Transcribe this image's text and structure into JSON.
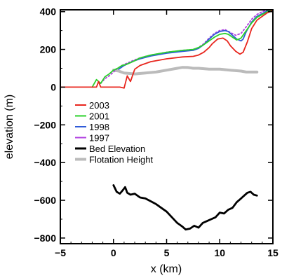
{
  "chart_data": {
    "type": "line",
    "title": "",
    "xlabel": "x (km)",
    "ylabel": "elevation (m)",
    "xlim": [
      -5,
      15
    ],
    "ylim": [
      -830,
      410
    ],
    "xticks": [
      -5,
      0,
      5,
      10,
      15
    ],
    "yticks": [
      -800,
      -600,
      -400,
      -200,
      0,
      200,
      400
    ],
    "grid": false,
    "legend_placement": "left-middle",
    "series": [
      {
        "name": "2003",
        "color": "#e8261e",
        "style": "solid",
        "x": [
          -5,
          -2.0,
          -1.6,
          -1.4,
          -1.2,
          -0.8,
          0.6,
          1.0,
          1.3,
          1.6,
          2.0,
          2.5,
          3.5,
          5.0,
          6.5,
          7.5,
          8.0,
          8.5,
          9.0,
          9.3,
          9.8,
          10.3,
          10.7,
          11.0,
          11.5,
          11.9,
          12.2,
          12.6,
          13.0,
          13.5,
          14.0,
          14.5,
          15.0
        ],
        "y": [
          0,
          0,
          0,
          30,
          0,
          0,
          0,
          -5,
          60,
          30,
          95,
          115,
          135,
          150,
          160,
          163,
          170,
          185,
          210,
          230,
          255,
          260,
          245,
          220,
          190,
          175,
          185,
          240,
          310,
          355,
          375,
          395,
          405
        ]
      },
      {
        "name": "2001",
        "color": "#2bd12b",
        "style": "solid",
        "x": [
          -2.0,
          -1.6,
          -1.2,
          -0.8,
          -0.4,
          0.0,
          0.4,
          0.8,
          1.2,
          1.6,
          2.0,
          2.5,
          3.5,
          5.0,
          6.5,
          7.5,
          8.0,
          8.5,
          9.0,
          9.5,
          10.0,
          10.5,
          10.8,
          11.2,
          11.6,
          12.0,
          12.5,
          13.0,
          13.5,
          14.0,
          14.5,
          15.0
        ],
        "y": [
          0,
          40,
          20,
          55,
          70,
          90,
          100,
          115,
          120,
          130,
          140,
          155,
          170,
          185,
          195,
          200,
          210,
          225,
          245,
          265,
          280,
          285,
          280,
          265,
          250,
          260,
          300,
          340,
          370,
          385,
          400,
          410
        ]
      },
      {
        "name": "1998",
        "color": "#2f5bd8",
        "style": "solid",
        "x": [
          0.5,
          1.0,
          1.5,
          2.0,
          2.5,
          3.5,
          5.0,
          6.5,
          7.5,
          8.0,
          8.5,
          9.0,
          9.5,
          10.0,
          10.5,
          10.8,
          11.2,
          11.6,
          12.0,
          12.2,
          12.5,
          13.0,
          13.5,
          14.0,
          14.5,
          15.0
        ],
        "y": [
          95,
          115,
          128,
          140,
          150,
          165,
          180,
          190,
          195,
          205,
          225,
          255,
          280,
          295,
          300,
          295,
          275,
          255,
          245,
          255,
          295,
          345,
          375,
          390,
          405,
          410
        ]
      },
      {
        "name": "1997",
        "color": "#b03fe0",
        "style": "dotted",
        "x": [
          -1.2,
          -0.8,
          -0.4,
          0.0,
          0.4,
          0.8,
          1.2,
          1.6,
          2.0,
          2.5,
          3.5,
          5.0,
          6.5,
          7.5,
          8.0,
          8.5,
          9.0,
          9.5,
          10.0,
          10.5,
          11.0,
          11.5,
          12.0,
          12.5,
          13.0,
          13.5,
          14.0,
          14.5
        ],
        "y": [
          20,
          45,
          60,
          80,
          100,
          115,
          125,
          135,
          145,
          155,
          170,
          185,
          195,
          200,
          210,
          230,
          260,
          285,
          300,
          305,
          290,
          275,
          285,
          320,
          360,
          385,
          400,
          410
        ]
      },
      {
        "name": "Bed Elevation",
        "color": "#000000",
        "style": "solid",
        "x": [
          0.0,
          0.3,
          0.6,
          0.9,
          1.1,
          1.3,
          1.6,
          2.0,
          2.5,
          3.0,
          3.5,
          4.0,
          4.5,
          5.0,
          5.5,
          6.0,
          6.5,
          6.8,
          7.2,
          7.6,
          8.0,
          8.4,
          8.8,
          9.2,
          9.6,
          10.0,
          10.4,
          10.8,
          11.2,
          11.6,
          12.0,
          12.3,
          12.6,
          12.9,
          13.2,
          13.5
        ],
        "y": [
          -520,
          -555,
          -565,
          -545,
          -530,
          -560,
          -570,
          -565,
          -585,
          -590,
          -605,
          -620,
          -640,
          -660,
          -690,
          -720,
          -740,
          -755,
          -750,
          -735,
          -745,
          -720,
          -710,
          -700,
          -690,
          -665,
          -670,
          -650,
          -640,
          -610,
          -590,
          -575,
          -560,
          -555,
          -570,
          -575
        ]
      },
      {
        "name": "Flotation Height",
        "color": "#bbbbbb",
        "style": "solid",
        "x": [
          0.0,
          0.5,
          1.0,
          2.0,
          3.0,
          4.0,
          5.0,
          6.0,
          6.5,
          7.0,
          7.5,
          8.0,
          9.0,
          10.0,
          11.0,
          12.0,
          12.5,
          13.0,
          13.5
        ],
        "y": [
          90,
          85,
          75,
          70,
          75,
          80,
          90,
          100,
          105,
          104,
          100,
          100,
          95,
          95,
          90,
          85,
          80,
          80,
          80
        ]
      }
    ]
  }
}
